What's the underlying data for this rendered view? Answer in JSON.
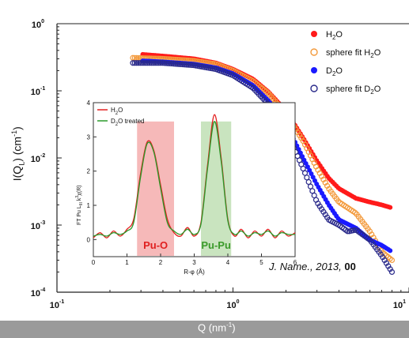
{
  "chart_data": [
    {
      "type": "scatter",
      "xlabel_parts": {
        "base": "Q (nm",
        "exp": "-1",
        "close": ")"
      },
      "ylabel_parts": {
        "a": "I(Q",
        "sub": "L",
        "b": ") (cm",
        "exp": "-1",
        "c": ")"
      },
      "x_scale": "log",
      "y_scale": "log",
      "xlim": [
        0.1,
        10
      ],
      "ylim": [
        0.0001,
        1
      ],
      "x_ticks": [
        {
          "base": "10",
          "exp": "-1"
        },
        {
          "base": "10",
          "exp": "0"
        },
        {
          "base": "10",
          "exp": "1"
        }
      ],
      "y_ticks": [
        {
          "base": "10",
          "exp": "0"
        },
        {
          "base": "10",
          "exp": "-1"
        },
        {
          "base": "10",
          "exp": "-2"
        },
        {
          "base": "10",
          "exp": "-3"
        },
        {
          "base": "10",
          "exp": "-4"
        }
      ],
      "legend_position": "top-right",
      "series": [
        {
          "name_parts": [
            "H",
            "2",
            "O"
          ],
          "color": "#ff1a1a",
          "marker": "filled",
          "x": [
            0.3,
            0.4,
            0.6,
            0.8,
            1.0,
            1.3,
            1.6,
            2.0,
            2.5,
            3.0,
            3.5,
            4.0,
            5.0,
            6.0,
            7.0,
            8.0
          ],
          "y": [
            0.35,
            0.33,
            0.3,
            0.26,
            0.21,
            0.15,
            0.095,
            0.05,
            0.02,
            0.009,
            0.005,
            0.0035,
            0.0025,
            0.0022,
            0.002,
            0.0018
          ]
        },
        {
          "name_parts": [
            "sphere fit H",
            "2",
            "O"
          ],
          "color": "#f39a3c",
          "marker": "open",
          "x": [
            0.27,
            0.4,
            0.6,
            0.8,
            1.0,
            1.3,
            1.6,
            2.0,
            2.5,
            3.0,
            3.5,
            4.0,
            4.5,
            5.0,
            6.0,
            7.0,
            8.0
          ],
          "y": [
            0.31,
            0.3,
            0.28,
            0.25,
            0.2,
            0.14,
            0.09,
            0.045,
            0.018,
            0.007,
            0.0035,
            0.0022,
            0.0018,
            0.0015,
            0.0008,
            0.0004,
            0.0003
          ]
        },
        {
          "name_parts": [
            "D",
            "2",
            "O"
          ],
          "color": "#1a1aff",
          "marker": "filled",
          "x": [
            0.3,
            0.4,
            0.6,
            0.8,
            1.0,
            1.3,
            1.6,
            2.0,
            2.5,
            3.0,
            3.5,
            4.0,
            5.0,
            6.0,
            7.0,
            8.0
          ],
          "y": [
            0.28,
            0.27,
            0.25,
            0.22,
            0.18,
            0.12,
            0.07,
            0.032,
            0.01,
            0.004,
            0.002,
            0.0012,
            0.0009,
            0.0006,
            0.0005,
            0.0004
          ]
        },
        {
          "name_parts": [
            "sphere fit D",
            "2",
            "O"
          ],
          "color": "#2a2a8a",
          "marker": "open",
          "x": [
            0.27,
            0.4,
            0.6,
            0.8,
            1.0,
            1.3,
            1.6,
            2.0,
            2.5,
            3.0,
            3.5,
            4.0,
            4.5,
            5.0,
            6.0,
            7.0,
            8.0
          ],
          "y": [
            0.26,
            0.26,
            0.24,
            0.21,
            0.17,
            0.11,
            0.062,
            0.026,
            0.007,
            0.0022,
            0.0012,
            0.001,
            0.0008,
            0.00085,
            0.0006,
            0.00035,
            0.0002
          ]
        }
      ]
    },
    {
      "type": "line",
      "xlabel": "R-φ (Å)",
      "ylabel_parts": {
        "a": "FT Pu L",
        "sub1": "III",
        "b": " k",
        "exp": "3",
        "c": "χ(R)"
      },
      "xlim": [
        0,
        6
      ],
      "ylim": [
        -0.5,
        4
      ],
      "x_ticks": [
        "0",
        "1",
        "2",
        "3",
        "4",
        "5",
        "6"
      ],
      "y_ticks": [
        "0",
        "1",
        "2",
        "3",
        "4"
      ],
      "legend_position": "top-left",
      "annotations": [
        {
          "text": "Pu-O",
          "x_range": [
            1.3,
            2.4
          ],
          "color": "#e02020",
          "fill": "#f6b9b9"
        },
        {
          "text": "Pu-Pu",
          "x_range": [
            3.2,
            4.1
          ],
          "color": "#3a9a2a",
          "fill": "#c9e4bf"
        }
      ],
      "series": [
        {
          "name_parts": [
            "H",
            "2",
            "O"
          ],
          "color": "#e32020",
          "x": [
            0,
            0.2,
            0.4,
            0.6,
            0.8,
            1.0,
            1.2,
            1.4,
            1.6,
            1.8,
            2.0,
            2.2,
            2.4,
            2.6,
            2.8,
            3.0,
            3.2,
            3.4,
            3.6,
            3.8,
            4.0,
            4.2,
            4.4,
            4.6,
            4.8,
            5.0,
            5.2,
            5.4,
            5.6,
            5.8,
            6.0
          ],
          "y": [
            0.05,
            0.2,
            0.05,
            0.25,
            0.1,
            0.3,
            0.6,
            1.9,
            2.85,
            2.6,
            1.6,
            0.6,
            0.2,
            0.1,
            0.35,
            0.1,
            0.5,
            2.2,
            3.65,
            2.4,
            0.6,
            0.1,
            0.3,
            0.05,
            0.25,
            0.1,
            0.3,
            0.05,
            0.25,
            0.1,
            0.2
          ]
        },
        {
          "name_parts": [
            "D",
            "2",
            "O treated"
          ],
          "color": "#2a9a2a",
          "x": [
            0,
            0.2,
            0.4,
            0.6,
            0.8,
            1.0,
            1.2,
            1.4,
            1.6,
            1.8,
            2.0,
            2.2,
            2.4,
            2.6,
            2.8,
            3.0,
            3.2,
            3.4,
            3.6,
            3.8,
            4.0,
            4.2,
            4.4,
            4.6,
            4.8,
            5.0,
            5.2,
            5.4,
            5.6,
            5.8,
            6.0
          ],
          "y": [
            0.1,
            0.15,
            0.1,
            0.2,
            0.15,
            0.25,
            0.5,
            1.8,
            2.8,
            2.55,
            1.5,
            0.5,
            0.25,
            0.15,
            0.3,
            0.15,
            0.45,
            2.1,
            3.45,
            2.3,
            0.55,
            0.15,
            0.25,
            0.1,
            0.2,
            0.15,
            0.25,
            0.1,
            0.2,
            0.15,
            0.15
          ]
        }
      ]
    }
  ],
  "citation": {
    "journal": "J. Name.",
    "year": ", 2013, ",
    "volume": "00"
  }
}
